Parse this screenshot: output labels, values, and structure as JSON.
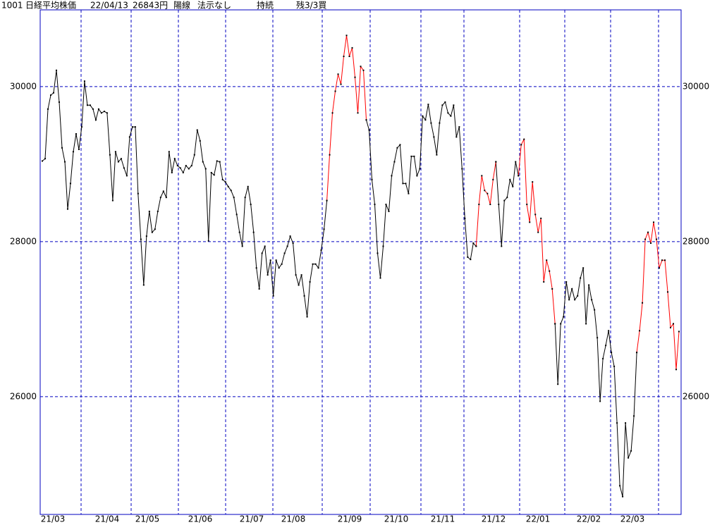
{
  "header": {
    "code": "1001",
    "name": "日経平均株価",
    "date": "22/04/13",
    "price": "26843円",
    "candle": "陽線",
    "signal": "法示なし",
    "state": "持続",
    "remain": "残3/3買"
  },
  "chart_data": {
    "type": "line",
    "x_labels": [
      "21/03",
      "21/04",
      "21/05",
      "21/06",
      "21/07",
      "21/08",
      "21/09",
      "21/10",
      "21/11",
      "21/12",
      "22/01",
      "22/02",
      "22/03"
    ],
    "ylim": [
      24480,
      30990
    ],
    "yticks": [
      26000,
      28000,
      30000
    ],
    "grid": true,
    "marker_color": "#000000",
    "series": [
      {
        "color": "#000000",
        "values": [
          29040,
          29070,
          29710,
          29890,
          29920,
          30210,
          29800,
          29210,
          29030,
          28420,
          28750,
          29160,
          29390,
          29190,
          29480,
          30070,
          29760,
          29760,
          29710,
          29570,
          29710,
          29660,
          29680,
          29660,
          29120,
          28530,
          29160,
          29030,
          29070,
          28950,
          28850,
          29350,
          29480,
          29480,
          28620,
          28030,
          27440,
          28070,
          28390,
          28120,
          28160,
          28390,
          28570,
          28650,
          28570,
          29160,
          28890,
          29070,
          28980,
          28950,
          28890,
          28980,
          28940,
          28980,
          29120,
          29440,
          29300,
          29030,
          28940,
          28010,
          28890,
          28860,
          29040,
          29030,
          28800,
          28770,
          28710,
          28660,
          28570,
          28350,
          28120,
          27940,
          28570,
          28710,
          28480,
          28120,
          27660,
          27390,
          27850,
          27940,
          27570,
          27760,
          27300,
          27760,
          27660,
          27710,
          27850,
          27940,
          28070,
          27980,
          27570,
          27440,
          27570,
          27300,
          27030,
          27480,
          27710,
          27710,
          27660,
          27890,
          28160,
          28530,
          null,
          null,
          null,
          null,
          null,
          null,
          null,
          null,
          null,
          null,
          null,
          null,
          null,
          29570,
          29440,
          28800,
          28480,
          27850,
          27530,
          27940,
          28480,
          28390,
          28850,
          29030,
          29210,
          29250,
          28750,
          28750,
          28620,
          29100,
          29100,
          28850,
          28940,
          29620,
          29570,
          29770,
          29530,
          29350,
          29120,
          29530,
          29760,
          29800,
          29660,
          29620,
          29760,
          29350,
          29480,
          28940,
          28300,
          27800,
          27770,
          27980,
          27940,
          null,
          null,
          null,
          null,
          null,
          null,
          29030,
          28480,
          27940,
          28530,
          28570,
          28800,
          28710,
          29030,
          28850,
          null,
          null,
          null,
          null,
          null,
          null,
          null,
          null,
          null,
          null,
          null,
          null,
          26940,
          26160,
          26940,
          27030,
          27480,
          27250,
          27390,
          27250,
          27300,
          27530,
          27660,
          26940,
          27440,
          27250,
          27120,
          26760,
          25940,
          26490,
          26660,
          26850,
          26570,
          26390,
          25660,
          24850,
          24710,
          25660,
          25210,
          25300,
          25750,
          26570,
          null,
          null,
          null,
          null,
          null,
          null,
          null,
          null,
          null,
          null,
          null,
          null,
          null,
          null,
          null
        ]
      },
      {
        "color": "#ff0000",
        "values": [
          null,
          null,
          null,
          null,
          null,
          null,
          null,
          null,
          null,
          null,
          null,
          null,
          null,
          null,
          null,
          null,
          null,
          null,
          null,
          null,
          null,
          null,
          null,
          null,
          null,
          null,
          null,
          null,
          null,
          null,
          null,
          null,
          null,
          null,
          null,
          null,
          null,
          null,
          null,
          null,
          null,
          null,
          null,
          null,
          null,
          null,
          null,
          null,
          null,
          null,
          null,
          null,
          null,
          null,
          null,
          null,
          null,
          null,
          null,
          null,
          null,
          null,
          null,
          null,
          null,
          null,
          null,
          null,
          null,
          null,
          null,
          null,
          null,
          null,
          null,
          null,
          null,
          null,
          null,
          null,
          null,
          null,
          null,
          null,
          null,
          null,
          null,
          null,
          null,
          null,
          null,
          null,
          null,
          null,
          null,
          null,
          null,
          null,
          null,
          null,
          null,
          28530,
          29120,
          29660,
          29940,
          30160,
          30030,
          30390,
          30660,
          30390,
          30500,
          30120,
          29660,
          30260,
          30210,
          29570,
          null,
          null,
          null,
          null,
          null,
          null,
          null,
          null,
          null,
          null,
          null,
          null,
          null,
          null,
          null,
          null,
          null,
          null,
          null,
          null,
          null,
          null,
          null,
          null,
          null,
          null,
          null,
          null,
          null,
          null,
          null,
          null,
          null,
          null,
          null,
          null,
          null,
          null,
          27940,
          28480,
          28850,
          28660,
          28620,
          28480,
          28800,
          29030,
          null,
          null,
          null,
          null,
          null,
          null,
          null,
          28850,
          29250,
          29320,
          28480,
          28250,
          28770,
          28350,
          28120,
          28300,
          27480,
          27760,
          27620,
          27390,
          26940,
          null,
          null,
          null,
          null,
          null,
          null,
          null,
          null,
          null,
          null,
          null,
          null,
          null,
          null,
          null,
          null,
          null,
          null,
          null,
          null,
          null,
          null,
          null,
          null,
          null,
          null,
          null,
          null,
          26570,
          26850,
          27210,
          28030,
          28120,
          27980,
          28250,
          28030,
          27660,
          27760,
          27760,
          27350,
          26890,
          26940,
          26350,
          26840
        ]
      }
    ]
  }
}
